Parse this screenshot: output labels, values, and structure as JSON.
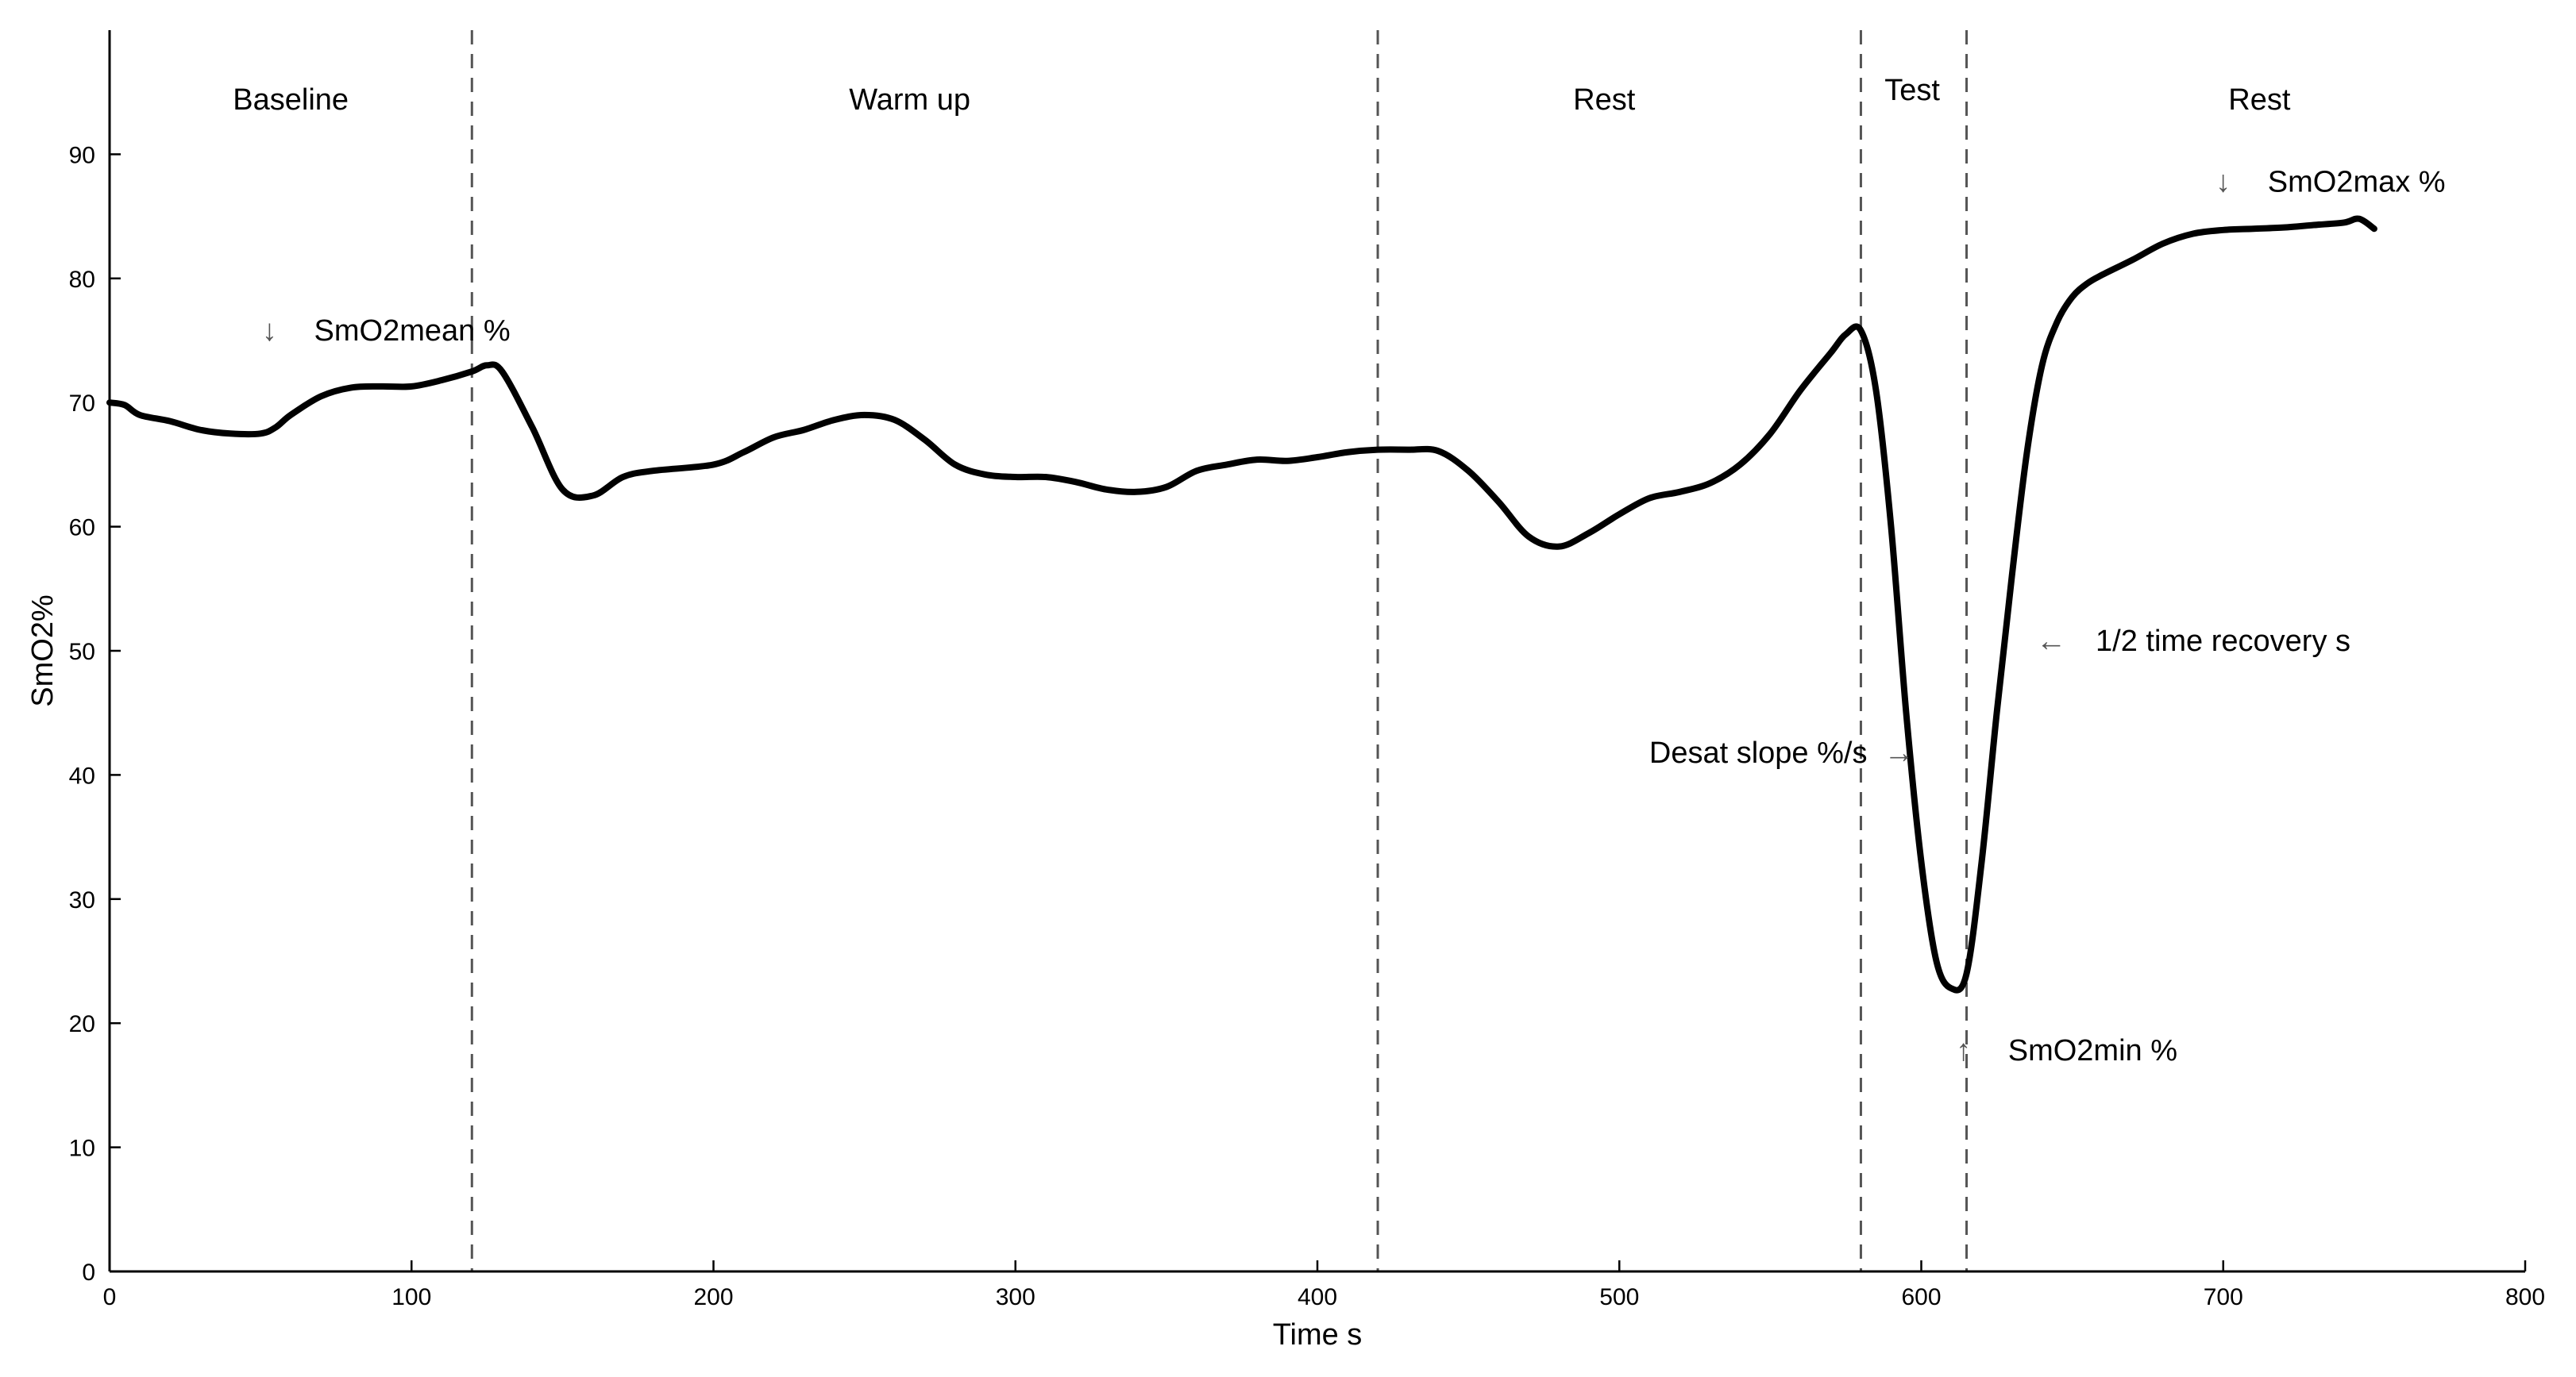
{
  "chart_data": {
    "type": "line",
    "xlabel": "Time s",
    "ylabel": "SmO2%",
    "xlim": [
      0,
      800
    ],
    "ylim": [
      0,
      100
    ],
    "xticks": [
      0,
      100,
      200,
      300,
      400,
      500,
      600,
      700,
      800
    ],
    "yticks": [
      0,
      10,
      20,
      30,
      40,
      50,
      60,
      70,
      80,
      90
    ],
    "grid": false,
    "phase_boundaries": [
      120,
      420,
      580,
      615
    ],
    "phases": [
      {
        "label": "Baseline",
        "x_center": 60
      },
      {
        "label": "Warm up",
        "x_center": 265
      },
      {
        "label": "Rest",
        "x_center": 495
      },
      {
        "label": "Test",
        "x_center": 597
      },
      {
        "label": "Rest",
        "x_center": 712
      }
    ],
    "annotations": [
      {
        "text": "SmO2mean %",
        "arrow": "↓",
        "x": 53,
        "y": 75
      },
      {
        "text": "SmO2max %",
        "arrow": "↓",
        "x": 700,
        "y": 87
      },
      {
        "text": "1/2 time recovery  s",
        "arrow": "←",
        "x": 643,
        "y": 50
      },
      {
        "text": "Desat slope %/s",
        "arrow": "→",
        "x": 590,
        "y": 41
      },
      {
        "text": "SmO2min %",
        "arrow": "↑",
        "x": 614,
        "y": 17
      }
    ],
    "series": [
      {
        "x": [
          0,
          5,
          10,
          20,
          30,
          40,
          50,
          55,
          60,
          70,
          80,
          90,
          100,
          110,
          120,
          125,
          130,
          140,
          150,
          160,
          170,
          180,
          200,
          210,
          220,
          230,
          240,
          250,
          260,
          270,
          280,
          290,
          300,
          310,
          320,
          330,
          340,
          350,
          360,
          370,
          380,
          390,
          400,
          410,
          420,
          430,
          440,
          450,
          460,
          470,
          480,
          490,
          500,
          510,
          520,
          530,
          540,
          550,
          560,
          570,
          575,
          580,
          585,
          590,
          595,
          600,
          605,
          610,
          615,
          620,
          625,
          630,
          635,
          640,
          645,
          650,
          655,
          660,
          670,
          680,
          690,
          700,
          710,
          720,
          730,
          740,
          745,
          750
        ],
        "y": [
          70,
          69.8,
          69,
          68.5,
          67.8,
          67.5,
          67.5,
          68,
          69,
          70.5,
          71.2,
          71.3,
          71.3,
          71.8,
          72.5,
          73,
          72.5,
          68,
          63,
          62.5,
          64,
          64.5,
          65,
          66,
          67.2,
          67.8,
          68.6,
          69,
          68.6,
          67,
          65,
          64.2,
          64,
          64,
          63.6,
          63,
          62.8,
          63.2,
          64.5,
          65,
          65.4,
          65.3,
          65.6,
          66,
          66.2,
          66.2,
          66.1,
          64.5,
          62,
          59.2,
          58.4,
          59.5,
          61,
          62.3,
          62.8,
          63.5,
          65,
          67.5,
          71,
          74,
          75.5,
          75.8,
          71,
          60,
          45,
          33,
          25,
          22.8,
          24,
          33,
          45,
          56,
          66,
          73,
          76.5,
          78.5,
          79.6,
          80.3,
          81.5,
          82.8,
          83.6,
          83.9,
          84.0,
          84.1,
          84.3,
          84.5,
          84.8,
          84.0
        ]
      }
    ]
  }
}
